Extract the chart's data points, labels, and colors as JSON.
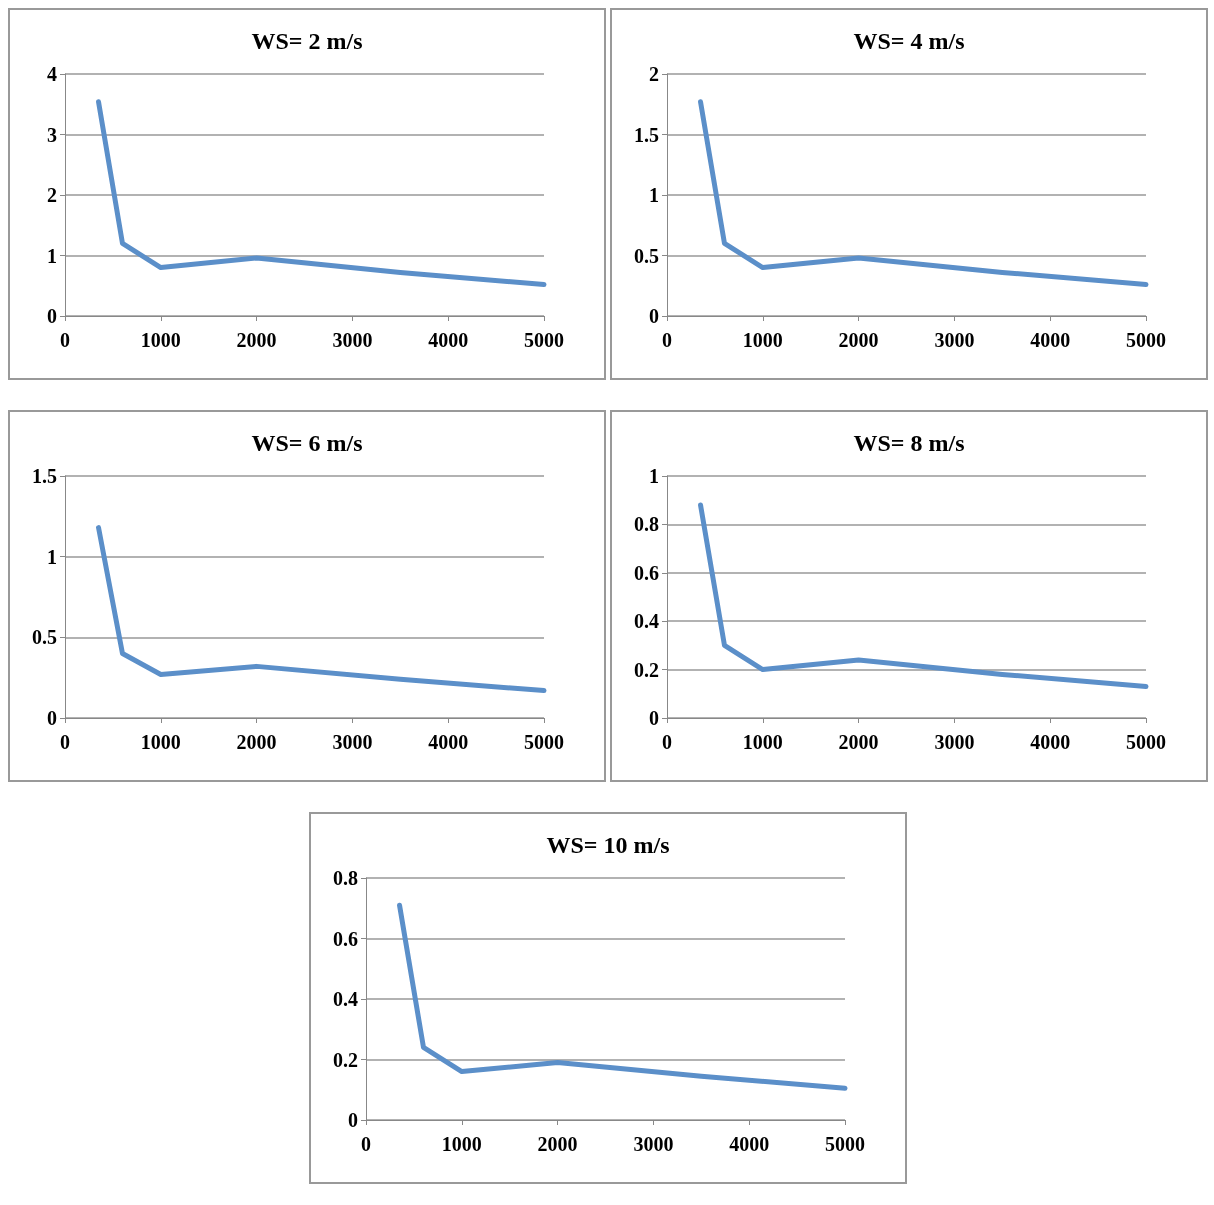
{
  "chart_data": [
    {
      "type": "line",
      "title": "WS= 2 m/s",
      "x": [
        350,
        600,
        1000,
        2000,
        3500,
        5000
      ],
      "values": [
        3.54,
        1.2,
        0.8,
        0.96,
        0.72,
        0.52
      ],
      "color": "#5b8fc9",
      "xlim": [
        0,
        5000
      ],
      "xticks": [
        0,
        1000,
        2000,
        3000,
        4000,
        5000
      ],
      "ylim": [
        0,
        4
      ],
      "yticks": [
        0,
        1,
        2,
        3,
        4
      ],
      "grid": "y",
      "marker": "none",
      "line_style": "solid"
    },
    {
      "type": "line",
      "title": "WS= 4 m/s",
      "x": [
        350,
        600,
        1000,
        2000,
        3500,
        5000
      ],
      "values": [
        1.77,
        0.6,
        0.4,
        0.48,
        0.36,
        0.26
      ],
      "color": "#5b8fc9",
      "xlim": [
        0,
        5000
      ],
      "xticks": [
        0,
        1000,
        2000,
        3000,
        4000,
        5000
      ],
      "ylim": [
        0,
        2
      ],
      "yticks": [
        0,
        0.5,
        1,
        1.5,
        2
      ],
      "grid": "y",
      "marker": "none",
      "line_style": "solid"
    },
    {
      "type": "line",
      "title": "WS= 6 m/s",
      "x": [
        350,
        600,
        1000,
        2000,
        3500,
        5000
      ],
      "values": [
        1.18,
        0.4,
        0.27,
        0.32,
        0.24,
        0.17
      ],
      "color": "#5b8fc9",
      "xlim": [
        0,
        5000
      ],
      "xticks": [
        0,
        1000,
        2000,
        3000,
        4000,
        5000
      ],
      "ylim": [
        0,
        1.5
      ],
      "yticks": [
        0,
        0.5,
        1,
        1.5
      ],
      "grid": "y",
      "marker": "none",
      "line_style": "solid"
    },
    {
      "type": "line",
      "title": "WS= 8 m/s",
      "x": [
        350,
        600,
        1000,
        2000,
        3500,
        5000
      ],
      "values": [
        0.88,
        0.3,
        0.2,
        0.24,
        0.18,
        0.13
      ],
      "color": "#5b8fc9",
      "xlim": [
        0,
        5000
      ],
      "xticks": [
        0,
        1000,
        2000,
        3000,
        4000,
        5000
      ],
      "ylim": [
        0,
        1
      ],
      "yticks": [
        0,
        0.2,
        0.4,
        0.6,
        0.8,
        1
      ],
      "grid": "y",
      "marker": "none",
      "line_style": "solid"
    },
    {
      "type": "line",
      "title": "WS= 10 m/s",
      "x": [
        350,
        600,
        1000,
        2000,
        3500,
        5000
      ],
      "values": [
        0.71,
        0.24,
        0.16,
        0.19,
        0.145,
        0.105
      ],
      "color": "#5b8fc9",
      "xlim": [
        0,
        5000
      ],
      "xticks": [
        0,
        1000,
        2000,
        3000,
        4000,
        5000
      ],
      "ylim": [
        0,
        0.8
      ],
      "yticks": [
        0,
        0.2,
        0.4,
        0.6,
        0.8
      ],
      "grid": "y",
      "marker": "none",
      "line_style": "solid"
    }
  ]
}
